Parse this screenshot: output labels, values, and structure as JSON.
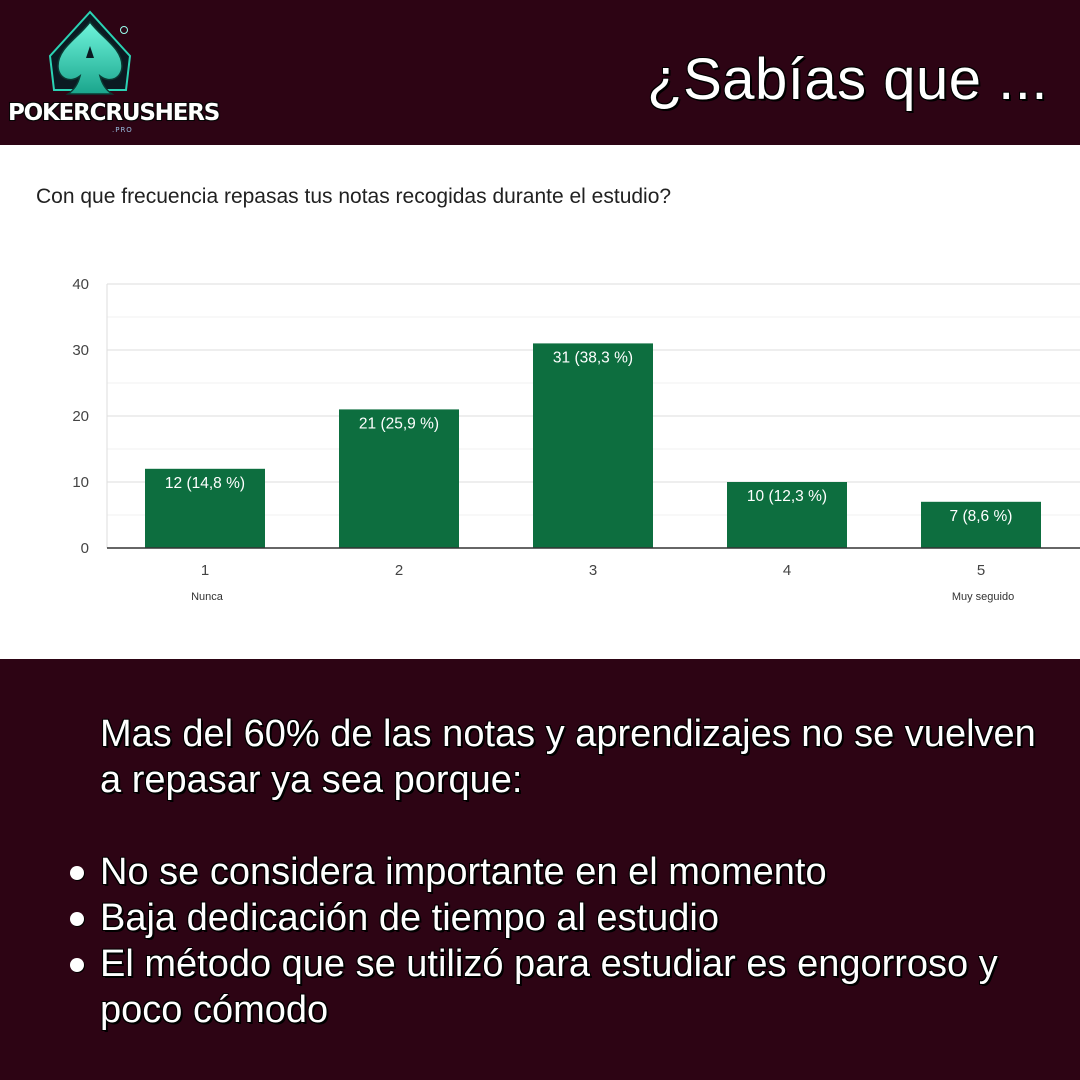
{
  "header": {
    "brand_name": "POKERCRUSHERS",
    "brand_suffix": ".PRO",
    "title": "¿Sabías que ..."
  },
  "chart_data": {
    "type": "bar",
    "title": "Con que frecuencia repasas tus notas recogidas durante el estudio?",
    "categories": [
      "1",
      "2",
      "3",
      "4",
      "5"
    ],
    "values": [
      12,
      21,
      31,
      10,
      7
    ],
    "data_labels": [
      "12 (14,8 %)",
      "21 (25,9 %)",
      "31 (38,3 %)",
      "10 (12,3 %)",
      "7 (8,6 %)"
    ],
    "category_sublabels": [
      "Nunca",
      "",
      "",
      "",
      "Muy seguido"
    ],
    "ylim": [
      0,
      40
    ],
    "yticks": [
      0,
      10,
      20,
      30,
      40
    ],
    "grid": true,
    "bar_color": "#0d6e3f",
    "xlabel": "",
    "ylabel": ""
  },
  "summary": {
    "intro": "Mas del 60% de las notas y aprendizajes no se vuelven a repasar ya sea porque:",
    "reasons": [
      "No se considera importante en el momento",
      "Baja dedicación de tiempo al estudio",
      "El método que se utilizó para estudiar es engorroso y poco cómodo"
    ]
  },
  "colors": {
    "background": "#2d0414",
    "logo_accent": "#3de0c0"
  }
}
